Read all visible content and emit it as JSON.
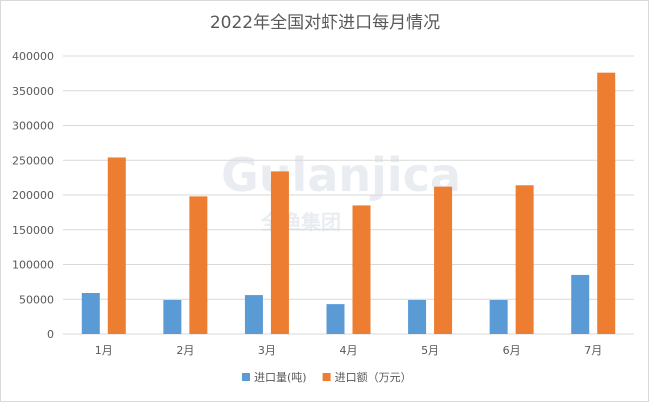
{
  "chart_data": {
    "type": "bar",
    "title": "2022年全国对虾进口每月情况",
    "categories": [
      "1月",
      "2月",
      "3月",
      "4月",
      "5月",
      "6月",
      "7月"
    ],
    "series": [
      {
        "name": "进口量(吨)",
        "color": "#5b9bd5",
        "values": [
          59000,
          49000,
          56000,
          43000,
          49000,
          49000,
          85000
        ]
      },
      {
        "name": "进口额（万元）",
        "color": "#ed7d31",
        "values": [
          254000,
          198000,
          234000,
          185000,
          212000,
          214000,
          376000
        ]
      }
    ],
    "ylim": [
      0,
      400000
    ],
    "yticks": [
      "0",
      "50000",
      "100000",
      "150000",
      "200000",
      "250000",
      "300000",
      "350000",
      "400000"
    ],
    "grid": true,
    "legend": "bottom",
    "watermark": {
      "text": "Gulanjica",
      "subtext": "全渔集团"
    }
  }
}
